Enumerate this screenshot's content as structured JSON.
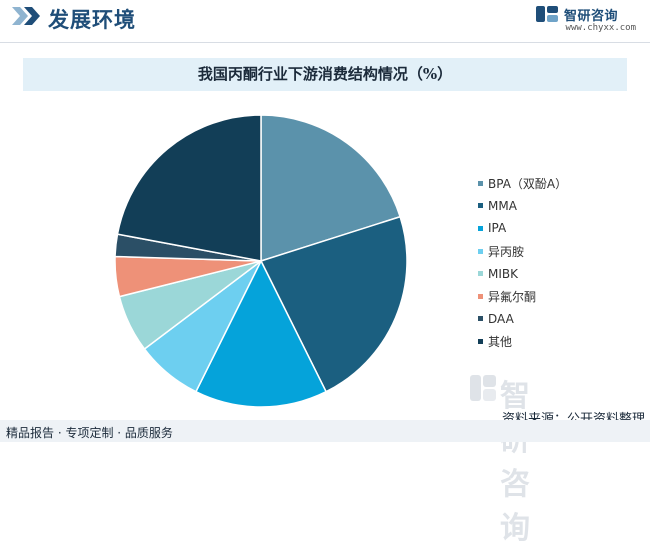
{
  "header": {
    "title": "发展环境",
    "brand_name": "智研咨询",
    "brand_url": "www.chyxx.com"
  },
  "chart_data": {
    "type": "pie",
    "title": "我国丙酮行业下游消费结构情况（%）",
    "start_angle_deg": 0,
    "direction": "clockwise",
    "legend_position": "right",
    "slices": [
      {
        "label": "BPA（双酚A）",
        "value": 20.5,
        "color": "#5b92ab"
      },
      {
        "label": "MMA",
        "value": 23.0,
        "color": "#1b5f80"
      },
      {
        "label": "IPA",
        "value": 15.0,
        "color": "#05a3da"
      },
      {
        "label": "异丙胺",
        "value": 7.5,
        "color": "#6dcff0"
      },
      {
        "label": "MIBK",
        "value": 6.5,
        "color": "#9bd7d8"
      },
      {
        "label": "异氟尔酮",
        "value": 4.5,
        "color": "#ee9178"
      },
      {
        "label": "DAA",
        "value": 2.5,
        "color": "#2b4f66"
      },
      {
        "label": "其他",
        "value": 22.5,
        "color": "#123e57"
      }
    ]
  },
  "footer": {
    "left_text": "精品报告 · 专项定制 · 品质服务",
    "source": "资料来源：公开资料整理",
    "watermark_name": "智研咨询"
  }
}
